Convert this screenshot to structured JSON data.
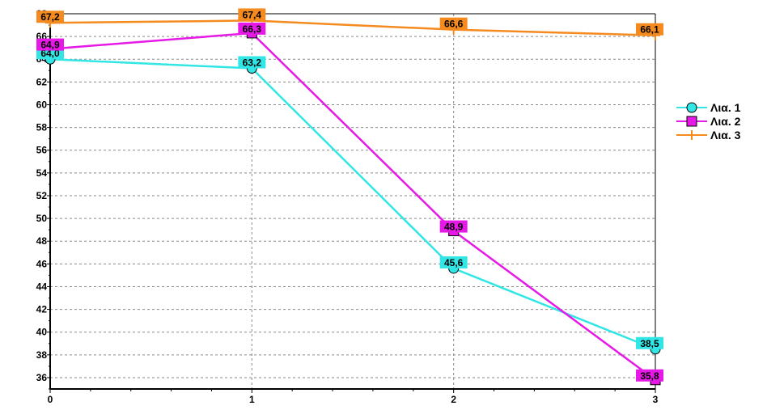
{
  "chart_data": {
    "type": "line",
    "title": "",
    "xlabel": "",
    "ylabel": "",
    "x": [
      0,
      1,
      2,
      3
    ],
    "x_tick_labels": [
      "0",
      "1",
      "2",
      "3"
    ],
    "xlim": [
      0,
      3
    ],
    "ylim": [
      35,
      68
    ],
    "y_tick_labels": [
      "36",
      "38",
      "40",
      "42",
      "44",
      "46",
      "48",
      "50",
      "52",
      "54",
      "56",
      "58",
      "60",
      "62",
      "64",
      "66",
      "68"
    ],
    "y_ticks": [
      36,
      38,
      40,
      42,
      44,
      46,
      48,
      50,
      52,
      54,
      56,
      58,
      60,
      62,
      64,
      66,
      68
    ],
    "grid": true,
    "legend_position": "right",
    "series": [
      {
        "name": "Λια. 1",
        "color": "#33e6e6",
        "marker": "circle",
        "values": [
          64.0,
          63.2,
          45.6,
          38.5
        ],
        "labels": [
          "64,0",
          "63,2",
          "45,6",
          "38,5"
        ]
      },
      {
        "name": "Λια. 2",
        "color": "#e619e6",
        "marker": "square",
        "values": [
          64.9,
          66.3,
          48.9,
          35.8
        ],
        "labels": [
          "64,9",
          "66,3",
          "48,9",
          "35,8"
        ]
      },
      {
        "name": "Λια. 3",
        "color": "#f58a1f",
        "marker": "plus",
        "values": [
          67.2,
          67.4,
          66.6,
          66.1
        ],
        "labels": [
          "67,2",
          "67,4",
          "66,6",
          "66,1"
        ]
      }
    ]
  }
}
